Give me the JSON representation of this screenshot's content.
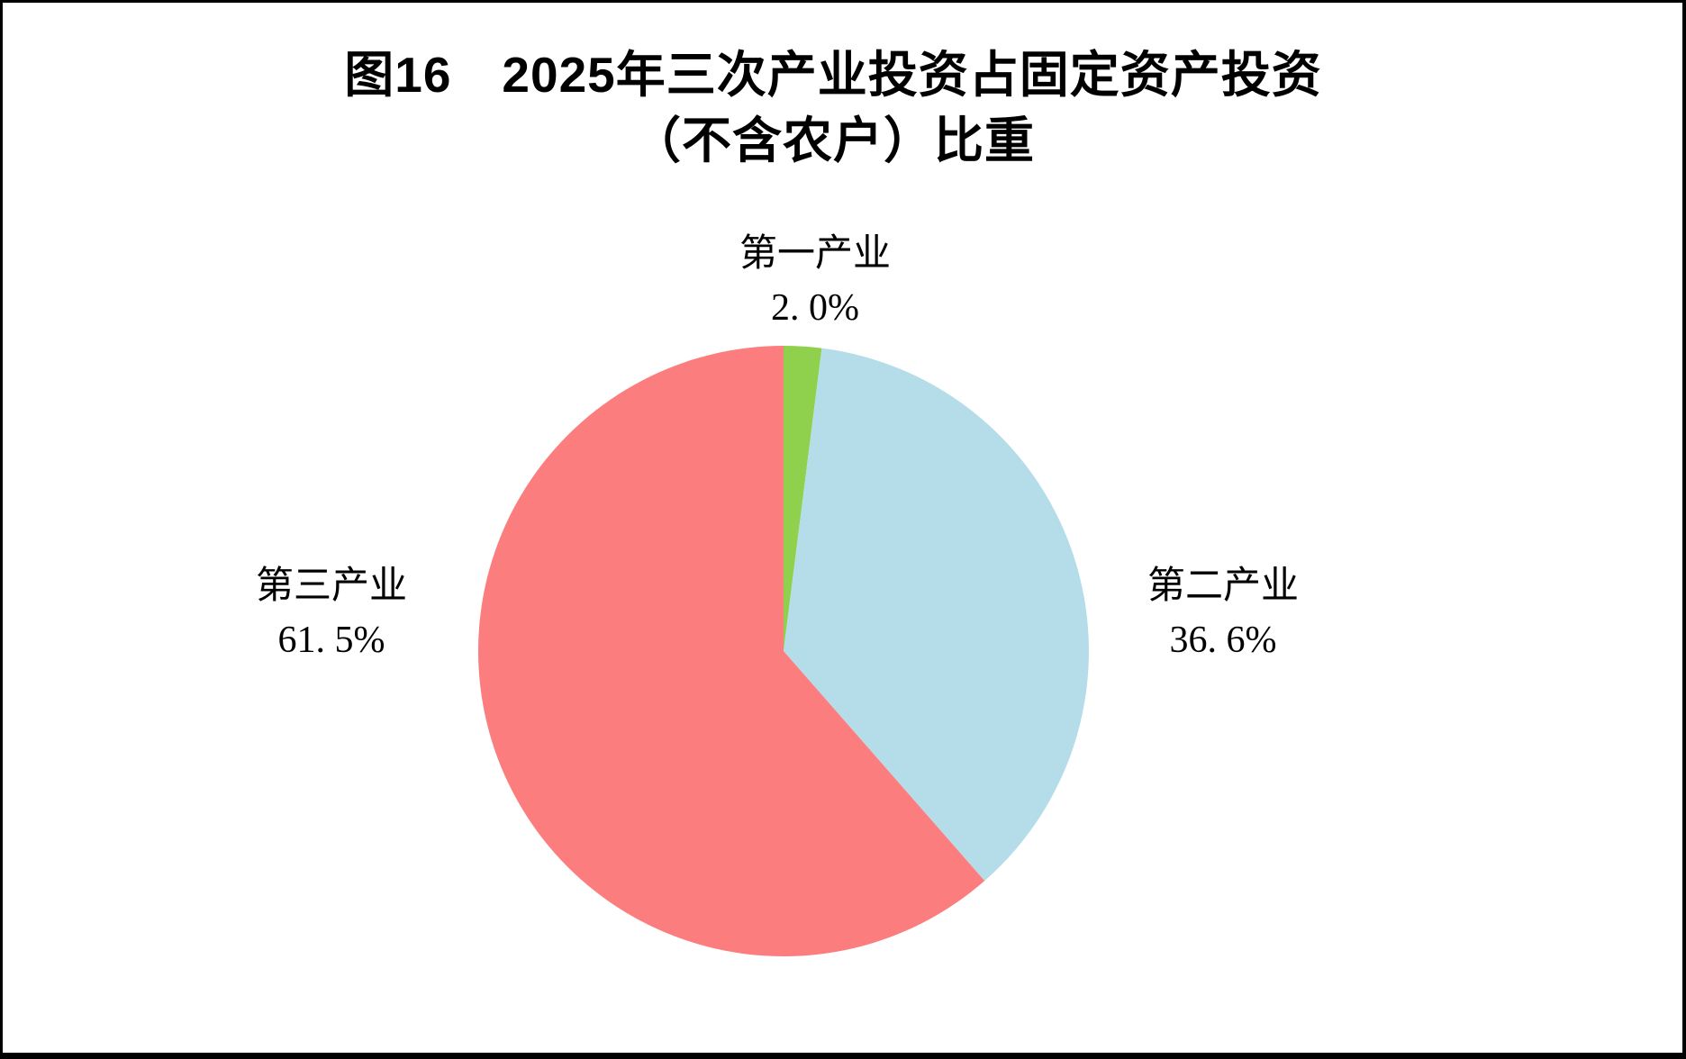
{
  "title": {
    "line1": "图16　2025年三次产业投资占固定资产投资",
    "line2": "（不含农户）比重"
  },
  "chart_data": {
    "type": "pie",
    "title": "图16 2025年三次产业投资占固定资产投资（不含农户）比重",
    "slices": [
      {
        "label": "第一产业",
        "value": 2.0,
        "display": "2. 0%",
        "color": "#8FD04C"
      },
      {
        "label": "第二产业",
        "value": 36.6,
        "display": "36. 6%",
        "color": "#B5DDE9"
      },
      {
        "label": "第三产业",
        "value": 61.5,
        "display": "61. 5%",
        "color": "#FC7D7E"
      }
    ],
    "start_angle_deg": 0,
    "direction": "clockwise",
    "label_position": "outside",
    "legend": "none",
    "background": "#ffffff",
    "frame_color": "#000000"
  }
}
